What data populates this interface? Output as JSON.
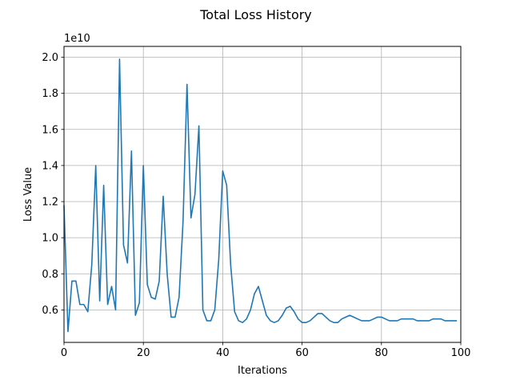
{
  "chart_data": {
    "type": "line",
    "title": "Total Loss History",
    "xlabel": "Iterations",
    "ylabel": "Loss Value",
    "y_offset_text": "1e10",
    "y_scale_factor": 10000000000.0,
    "xlim": [
      0,
      100
    ],
    "ylim": [
      4.2,
      20.6
    ],
    "x_ticks": [
      0,
      20,
      40,
      60,
      80,
      100
    ],
    "y_ticks": [
      6.0,
      8.0,
      10.0,
      12.0,
      14.0,
      16.0,
      18.0,
      20.0
    ],
    "y_tick_labels": [
      "0.6",
      "0.8",
      "1.0",
      "1.2",
      "1.4",
      "1.6",
      "1.8",
      "2.0"
    ],
    "grid": true,
    "series": [
      {
        "color": "#1f77b4",
        "values": [
          11.8,
          4.8,
          7.6,
          7.6,
          6.3,
          6.3,
          5.9,
          8.5,
          14.0,
          6.5,
          12.9,
          6.3,
          7.3,
          6.0,
          19.9,
          9.6,
          8.6,
          14.8,
          5.7,
          6.4,
          14.0,
          7.4,
          6.7,
          6.6,
          7.6,
          12.3,
          8.0,
          5.6,
          5.6,
          6.7,
          10.9,
          18.5,
          11.1,
          12.4,
          16.2,
          6.0,
          5.4,
          5.4,
          6.0,
          8.8,
          13.7,
          12.9,
          8.5,
          5.9,
          5.4,
          5.3,
          5.5,
          6.0,
          6.9,
          7.3,
          6.5,
          5.7,
          5.4,
          5.3,
          5.4,
          5.7,
          6.1,
          6.2,
          5.9,
          5.5,
          5.3,
          5.3,
          5.4,
          5.6,
          5.8,
          5.8,
          5.6,
          5.4,
          5.3,
          5.3,
          5.5,
          5.6,
          5.7,
          5.6,
          5.5,
          5.4,
          5.4,
          5.4,
          5.5,
          5.6,
          5.6,
          5.5,
          5.4,
          5.4,
          5.4,
          5.5,
          5.5,
          5.5,
          5.5,
          5.4,
          5.4,
          5.4,
          5.4,
          5.5,
          5.5,
          5.5,
          5.4,
          5.4,
          5.4,
          5.4
        ]
      }
    ]
  }
}
